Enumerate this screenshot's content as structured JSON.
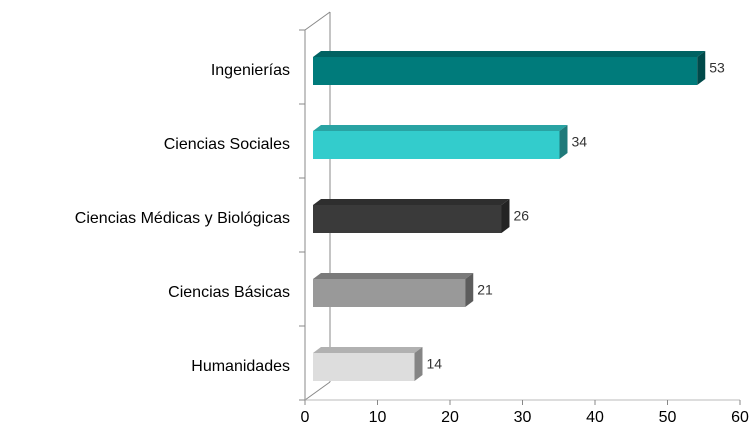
{
  "chart_data": {
    "type": "bar",
    "orientation": "horizontal",
    "categories": [
      "Ingenierías",
      "Ciencias Sociales",
      "Ciencias Médicas y Biológicas",
      "Ciencias Básicas",
      "Humanidades"
    ],
    "values": [
      53,
      34,
      26,
      21,
      14
    ],
    "colors": [
      "#007b7b",
      "#33cccc",
      "#3a3a3a",
      "#999999",
      "#dddddd"
    ],
    "xlim": [
      0,
      60
    ],
    "xticks": [
      0,
      10,
      20,
      30,
      40,
      50,
      60
    ]
  }
}
